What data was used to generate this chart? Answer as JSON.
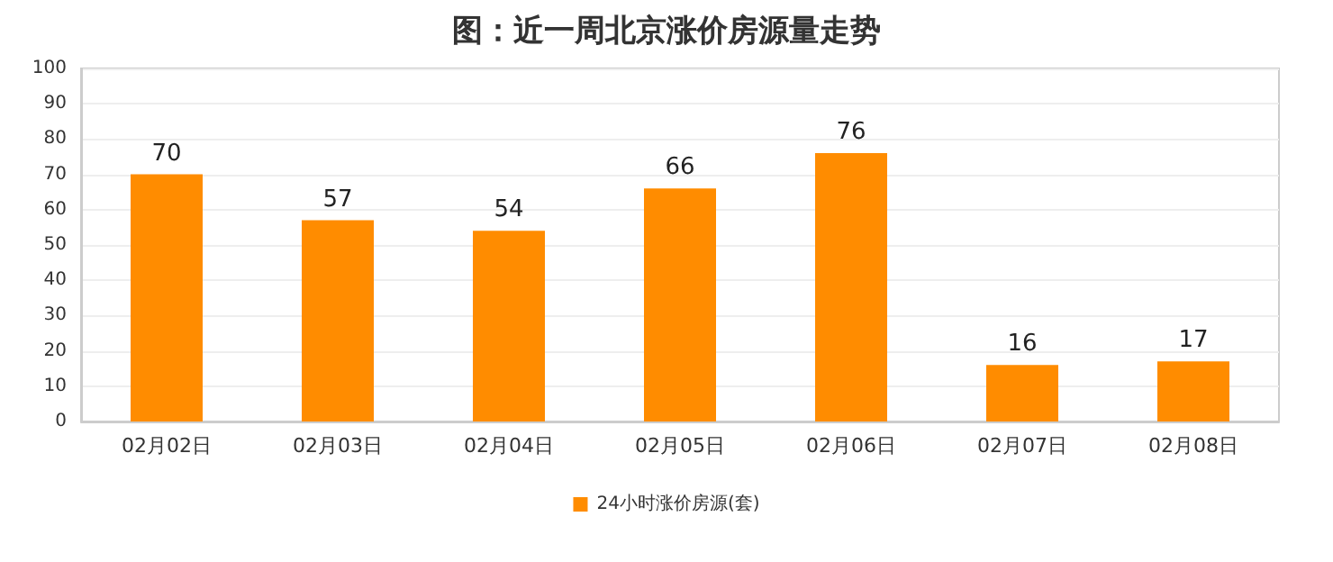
{
  "chart_data": {
    "type": "bar",
    "title": "图：近一周北京涨价房源量走势",
    "categories": [
      "02月02日",
      "02月03日",
      "02月04日",
      "02月05日",
      "02月06日",
      "02月07日",
      "02月08日"
    ],
    "series": [
      {
        "name": "24小时涨价房源(套)",
        "color": "#ff8c00",
        "values": [
          70,
          57,
          54,
          66,
          76,
          16,
          17
        ]
      }
    ],
    "ylim": [
      0,
      100
    ],
    "yticks": [
      0,
      10,
      20,
      30,
      40,
      50,
      60,
      70,
      80,
      90,
      100
    ],
    "grid": "y",
    "legend": "bottom",
    "data_labels": true
  }
}
